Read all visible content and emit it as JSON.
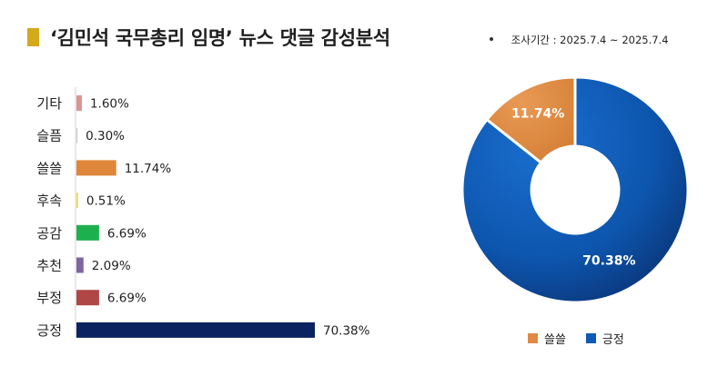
{
  "header": {
    "title": "‘김민석 국무총리 임명’ 뉴스 댓글 감성분석",
    "period": "조사기간 : 2025.7.4 ~ 2025.7.4"
  },
  "chart_data": [
    {
      "type": "bar",
      "orientation": "horizontal",
      "title": "",
      "categories": [
        "기타",
        "슬픔",
        "쓸쓸",
        "후속",
        "공감",
        "추천",
        "부정",
        "긍정"
      ],
      "values": [
        1.6,
        0.3,
        11.74,
        0.51,
        6.69,
        2.09,
        6.69,
        70.38
      ],
      "labels": [
        "1.60%",
        "0.30%",
        "11.74%",
        "0.51%",
        "6.69%",
        "2.09%",
        "6.69%",
        "70.38%"
      ],
      "colors": [
        "#d99594",
        "#c8c8c8",
        "#e0863a",
        "#e8e04a",
        "#1db04f",
        "#8064a2",
        "#b04747",
        "#0b2360"
      ],
      "xlim": [
        0,
        70.38
      ],
      "grid": false
    },
    {
      "type": "pie",
      "donut": true,
      "title": "",
      "categories": [
        "쓸쓸",
        "긍정"
      ],
      "values": [
        11.74,
        70.38
      ],
      "labels": [
        "11.74%",
        "70.38%"
      ],
      "colors": [
        "#de8a44",
        "#0d5bb5"
      ],
      "legend": "bottom"
    }
  ]
}
